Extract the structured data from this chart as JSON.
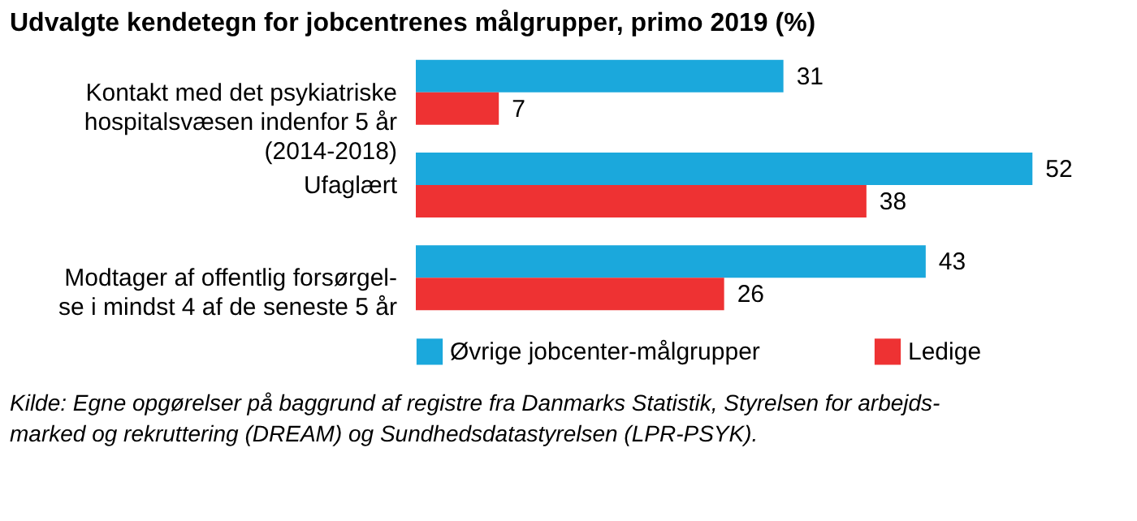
{
  "chart_data": {
    "type": "bar",
    "orientation": "horizontal",
    "title": "Udvalgte kendetegn for jobcentrenes målgrupper, primo 2019 (%)",
    "categories": [
      "Kontakt med det psykiatriske\nhospitalsvæsen indenfor 5 år\n(2014-2018)",
      "Ufaglært",
      "Modtager af offentlig forsørgel-\nse i mindst 4 af de seneste 5 år"
    ],
    "series": [
      {
        "name": "Øvrige jobcenter-målgrupper",
        "color": "#1ba8dc",
        "values": [
          31,
          52,
          43
        ]
      },
      {
        "name": "Ledige",
        "color": "#ee3233",
        "values": [
          7,
          38,
          26
        ]
      }
    ],
    "data_labels": true,
    "legend": "bottom",
    "grid": false,
    "annotations": [
      "Kilde: Egne opgørelser på baggrund af registre fra Danmarks Statistik, Styrelsen for arbejds-\nmarked og rekruttering (DREAM) og Sundhedsdatastyrelsen (LPR-PSYK)."
    ]
  }
}
